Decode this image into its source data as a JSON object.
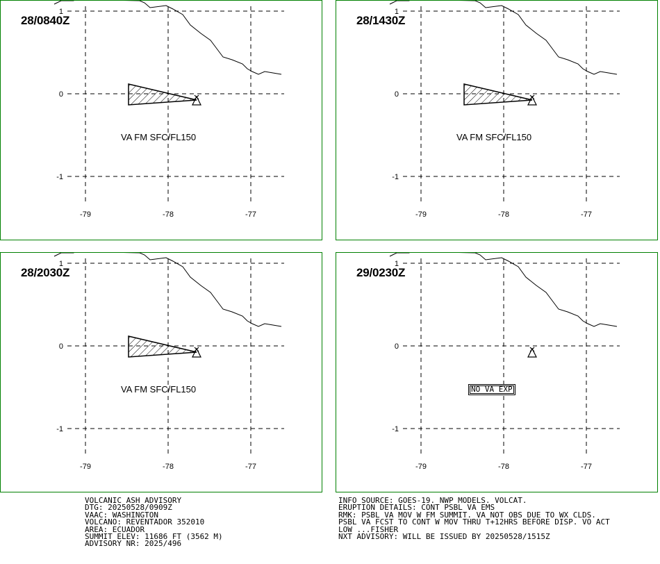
{
  "panels": [
    {
      "timestamp": "28/0840Z",
      "ash_label": "VA FM SFC/FL150",
      "has_ash": true
    },
    {
      "timestamp": "28/1430Z",
      "ash_label": "VA FM SFC/FL150",
      "has_ash": true
    },
    {
      "timestamp": "28/2030Z",
      "ash_label": "VA FM SFC/FL150",
      "has_ash": true
    },
    {
      "timestamp": "29/0230Z",
      "ash_label": "NO VA EXP",
      "has_ash": false
    }
  ],
  "axes": {
    "lat_labels": [
      "1",
      "0",
      "-1"
    ],
    "lon_labels": [
      "-79",
      "-78",
      "-77"
    ]
  },
  "footer": {
    "left": [
      "VOLCANIC ASH ADVISORY",
      "DTG: 20250528/0909Z",
      "VAAC: WASHINGTON",
      "VOLCANO: REVENTADOR 352010",
      "AREA: ECUADOR",
      "SUMMIT ELEV: 11686 FT (3562 M)",
      "ADVISORY NR: 2025/496"
    ],
    "right": [
      "INFO SOURCE: GOES-19. NWP MODELS. VOLCAT.",
      "ERUPTION DETAILS: CONT PSBL VA EMS",
      "RMK: PSBL VA MOV W FM SUMMIT. VA NOT OBS DUE TO WX CLDS.",
      "PSBL VA FCST TO CONT W MOV THRU T+12HRS BEFORE DISP. VO ACT",
      "LOW ...FISHER",
      "NXT ADVISORY: WILL BE ISSUED BY 20250528/1515Z"
    ]
  },
  "colors": {
    "panel_border": "#008000",
    "lines": "#000000"
  }
}
